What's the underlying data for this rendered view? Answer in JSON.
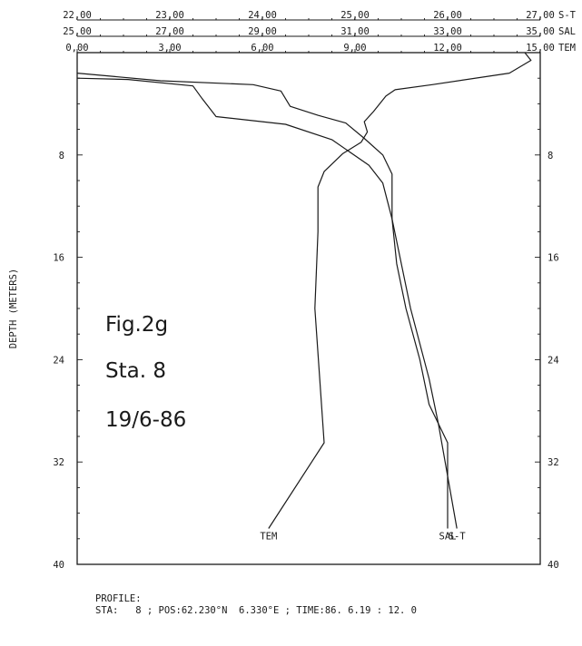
{
  "chart_data": {
    "type": "line",
    "title": "",
    "ylabel": "DEPTH (METERS)",
    "ylim": [
      0,
      40
    ],
    "y_ticks": [
      0,
      8,
      16,
      24,
      32,
      40
    ],
    "y_tick_labels": [
      "8",
      "16",
      "24",
      "32",
      "40"
    ],
    "top_axes": [
      {
        "label": "S-T",
        "range": [
          22,
          27
        ],
        "ticks": [
          "22,00",
          "23,00",
          "24,00",
          "25,00",
          "26,00",
          "27,00"
        ]
      },
      {
        "label": "SAL",
        "range": [
          25,
          35
        ],
        "ticks": [
          "25,00",
          "27,00",
          "29,00",
          "31,00",
          "33,00",
          "35,00"
        ]
      },
      {
        "label": "TEM",
        "range": [
          0,
          15
        ],
        "ticks": [
          "0,00",
          "3,00",
          "6,00",
          "9,00",
          "12,00",
          "15,00"
        ]
      }
    ],
    "series": [
      {
        "name": "TEM",
        "axis": "TEM",
        "points": [
          [
            14.5,
            0
          ],
          [
            14.7,
            0.6
          ],
          [
            14.0,
            1.6
          ],
          [
            11.5,
            2.5
          ],
          [
            10.3,
            2.9
          ],
          [
            10.0,
            3.4
          ],
          [
            9.6,
            4.6
          ],
          [
            9.3,
            5.4
          ],
          [
            9.4,
            6.2
          ],
          [
            9.2,
            7.0
          ],
          [
            8.6,
            7.9
          ],
          [
            8.0,
            9.3
          ],
          [
            7.8,
            10.5
          ],
          [
            7.8,
            14.0
          ],
          [
            7.7,
            20.0
          ],
          [
            7.9,
            27.0
          ],
          [
            8.0,
            30.5
          ],
          [
            6.2,
            37.2
          ]
        ]
      },
      {
        "name": "S-T",
        "axis": "S-T",
        "points": [
          [
            22.0,
            1.6
          ],
          [
            22.9,
            2.2
          ],
          [
            23.9,
            2.5
          ],
          [
            24.2,
            3.0
          ],
          [
            24.3,
            4.2
          ],
          [
            24.6,
            4.9
          ],
          [
            24.9,
            5.5
          ],
          [
            25.1,
            6.7
          ],
          [
            25.3,
            8.0
          ],
          [
            25.4,
            9.5
          ],
          [
            25.4,
            13.0
          ],
          [
            25.5,
            16.5
          ],
          [
            25.6,
            20.0
          ],
          [
            25.8,
            25.5
          ],
          [
            25.9,
            29.0
          ],
          [
            26.1,
            37.2
          ]
        ]
      },
      {
        "name": "SAL",
        "axis": "SAL",
        "points": [
          [
            25.0,
            2.0
          ],
          [
            26.1,
            2.1
          ],
          [
            27.5,
            2.6
          ],
          [
            27.7,
            3.6
          ],
          [
            28.0,
            5.0
          ],
          [
            29.5,
            5.6
          ],
          [
            30.5,
            6.8
          ],
          [
            31.3,
            8.8
          ],
          [
            31.6,
            10.2
          ],
          [
            31.8,
            13.0
          ],
          [
            31.9,
            16.5
          ],
          [
            32.1,
            20.0
          ],
          [
            32.4,
            24.0
          ],
          [
            32.6,
            27.5
          ],
          [
            33.0,
            30.5
          ],
          [
            33.0,
            37.2
          ]
        ]
      }
    ],
    "annotations": [
      "Fig.2g",
      "Sta. 8",
      "19/6-86"
    ],
    "grid": false
  },
  "profile": {
    "heading": "PROFILE:",
    "station_line": "STA:   8 ; POS:62.230°N  6.330°E ; TIME:86. 6.19 : 12. 0"
  }
}
